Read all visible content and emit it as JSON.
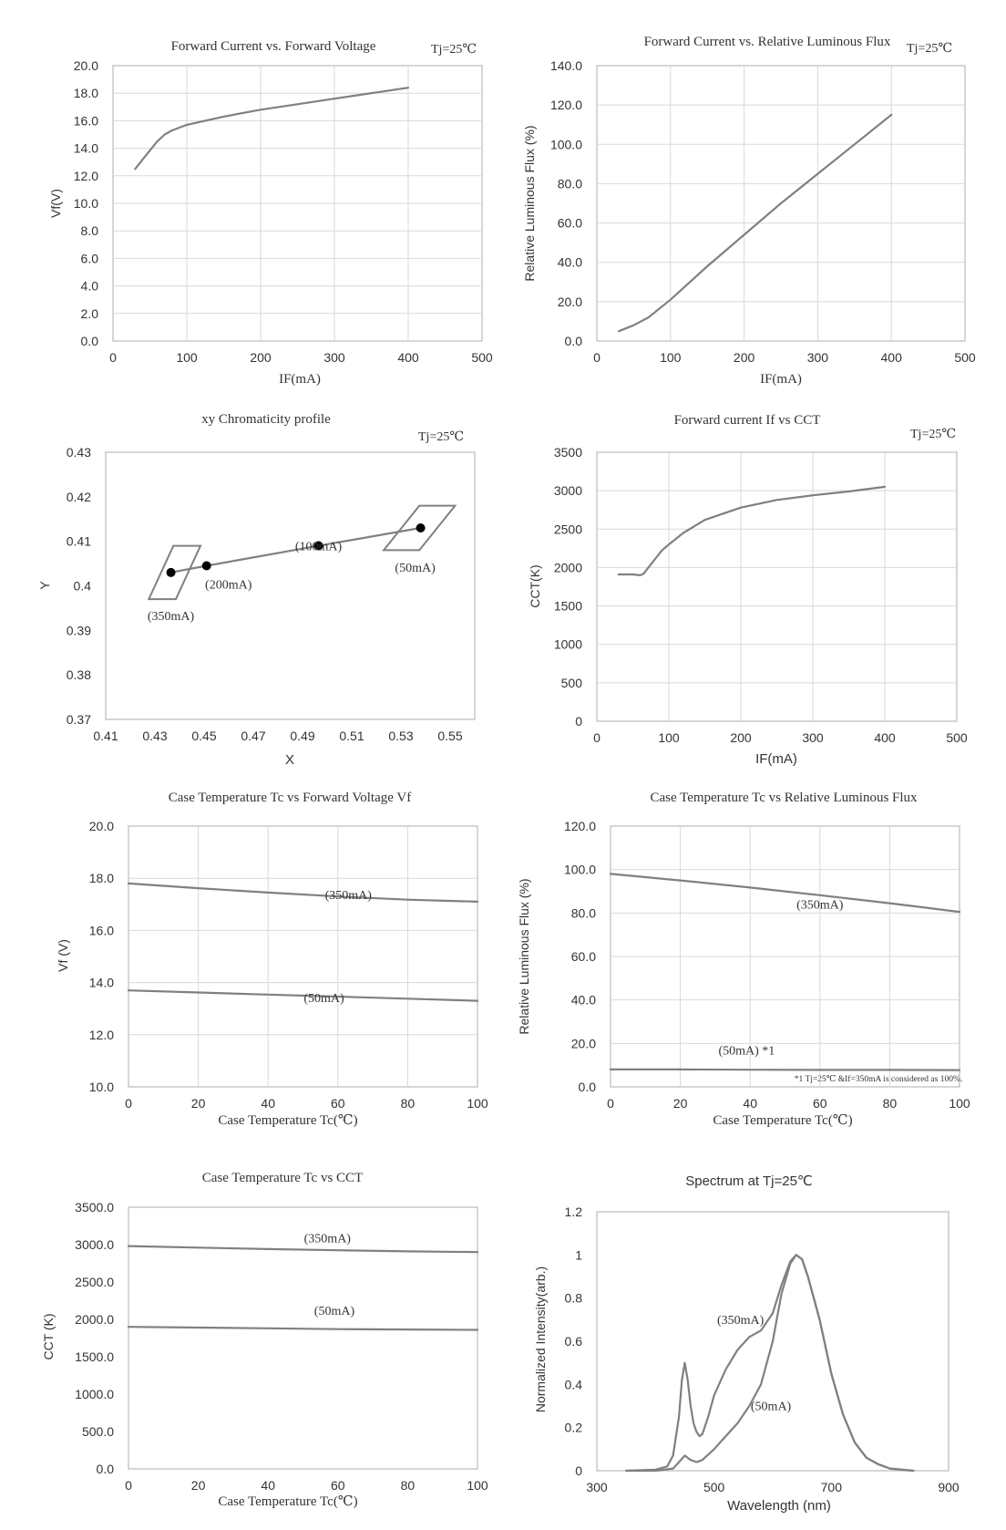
{
  "colors": {
    "line": "#808080",
    "grid": "#d9d9d9",
    "axis": "#bfbfbf",
    "text": "#333333",
    "marker": "#000000"
  },
  "chart_data": [
    {
      "type": "line",
      "title": "Forward Current vs. Forward Voltage",
      "annotation": "Tj=25℃",
      "xlabel": "IF(mA)",
      "ylabel": "Vf(V)",
      "xlim": [
        0,
        500
      ],
      "ylim": [
        0,
        20
      ],
      "xticks": [
        "0",
        "100",
        "200",
        "300",
        "400",
        "500"
      ],
      "yticks": [
        "0.0",
        "2.0",
        "4.0",
        "6.0",
        "8.0",
        "10.0",
        "12.0",
        "14.0",
        "16.0",
        "18.0",
        "20.0"
      ],
      "grid": true,
      "series": [
        {
          "x": [
            30,
            45,
            60,
            70,
            80,
            100,
            150,
            200,
            250,
            300,
            350,
            400
          ],
          "y": [
            12.5,
            13.5,
            14.5,
            15.0,
            15.3,
            15.7,
            16.3,
            16.8,
            17.2,
            17.6,
            18.0,
            18.4
          ]
        }
      ]
    },
    {
      "type": "line",
      "title": "Forward Current vs. Relative Luminous Flux",
      "annotation": "Tj=25℃",
      "xlabel": "IF(mA)",
      "ylabel": "Relative Luminous Flux (%)",
      "xlim": [
        0,
        500
      ],
      "ylim": [
        0,
        140
      ],
      "xticks": [
        "0",
        "100",
        "200",
        "300",
        "400",
        "500"
      ],
      "yticks": [
        "0.0",
        "20.0",
        "40.0",
        "60.0",
        "80.0",
        "100.0",
        "120.0",
        "140.0"
      ],
      "grid": true,
      "series": [
        {
          "x": [
            30,
            50,
            70,
            90,
            100,
            150,
            200,
            250,
            300,
            350,
            400
          ],
          "y": [
            5,
            8,
            12,
            18,
            21,
            38,
            54,
            70,
            85,
            100,
            115
          ]
        }
      ]
    },
    {
      "type": "scatter",
      "title": "xy Chromaticity profile",
      "annotation": "Tj=25℃",
      "xlabel": "X",
      "ylabel": "Y",
      "xlim": [
        0.41,
        0.56
      ],
      "ylim": [
        0.37,
        0.43
      ],
      "xticks": [
        "0.41",
        "0.43",
        "0.45",
        "0.47",
        "0.49",
        "0.51",
        "0.53",
        "0.55"
      ],
      "yticks": [
        "0.37",
        "0.38",
        "0.39",
        "0.4",
        "0.41",
        "0.42",
        "0.43"
      ],
      "grid": false,
      "points": [
        {
          "label": "(350mA)",
          "x": 0.4365,
          "y": 0.403
        },
        {
          "label": "(200mA)",
          "x": 0.451,
          "y": 0.4045
        },
        {
          "label": "(100mA)",
          "x": 0.4965,
          "y": 0.409
        },
        {
          "label": "(50mA)",
          "x": 0.538,
          "y": 0.413
        }
      ],
      "boxes": [
        [
          [
            0.4275,
            0.397
          ],
          [
            0.4385,
            0.397
          ],
          [
            0.4485,
            0.409
          ],
          [
            0.4375,
            0.409
          ]
        ],
        [
          [
            0.523,
            0.408
          ],
          [
            0.5375,
            0.408
          ],
          [
            0.552,
            0.418
          ],
          [
            0.5375,
            0.418
          ]
        ]
      ]
    },
    {
      "type": "line",
      "title": "Forward current If vs CCT",
      "annotation": "Tj=25℃",
      "xlabel": "IF(mA)",
      "ylabel": "CCT(K)",
      "xlim": [
        0,
        500
      ],
      "ylim": [
        0,
        3500
      ],
      "xticks": [
        "0",
        "100",
        "200",
        "300",
        "400",
        "500"
      ],
      "yticks": [
        "0",
        "500",
        "1000",
        "1500",
        "2000",
        "2500",
        "3000",
        "3500"
      ],
      "grid": true,
      "series": [
        {
          "x": [
            30,
            40,
            50,
            60,
            65,
            70,
            80,
            90,
            100,
            120,
            150,
            200,
            250,
            300,
            350,
            400
          ],
          "y": [
            1910,
            1910,
            1910,
            1900,
            1920,
            1980,
            2100,
            2220,
            2300,
            2450,
            2620,
            2780,
            2880,
            2940,
            2990,
            3050
          ]
        }
      ]
    },
    {
      "type": "line",
      "title": "Case Temperature Tc vs Forward Voltage Vf",
      "xlabel": "Case Temperature Tc(℃)",
      "ylabel": "Vf (V)",
      "xlim": [
        0,
        100
      ],
      "ylim": [
        10,
        20
      ],
      "xticks": [
        "0",
        "20",
        "40",
        "60",
        "80",
        "100"
      ],
      "yticks": [
        "10.0",
        "12.0",
        "14.0",
        "16.0",
        "18.0",
        "20.0"
      ],
      "grid": true,
      "series": [
        {
          "name": "(350mA)",
          "x": [
            0,
            20,
            40,
            60,
            80,
            100
          ],
          "y": [
            17.8,
            17.62,
            17.45,
            17.3,
            17.18,
            17.1
          ]
        },
        {
          "name": "(50mA)",
          "x": [
            0,
            20,
            40,
            60,
            80,
            100
          ],
          "y": [
            13.7,
            13.62,
            13.54,
            13.46,
            13.38,
            13.3
          ]
        }
      ],
      "labels": [
        {
          "text": "(350mA)",
          "x": 63,
          "y": 17.2
        },
        {
          "text": "(50mA)",
          "x": 56,
          "y": 13.25
        }
      ]
    },
    {
      "type": "line",
      "title": "Case Temperature Tc vs Relative Luminous Flux",
      "xlabel": "Case Temperature Tc(℃)",
      "ylabel": "Relative Luminous Flux (%)",
      "xlim": [
        0,
        100
      ],
      "ylim": [
        0,
        120
      ],
      "xticks": [
        "0",
        "20",
        "40",
        "60",
        "80",
        "100"
      ],
      "yticks": [
        "0.0",
        "20.0",
        "40.0",
        "60.0",
        "80.0",
        "100.0",
        "120.0"
      ],
      "grid": true,
      "series": [
        {
          "name": "(350mA)",
          "x": [
            0,
            20,
            40,
            60,
            80,
            100
          ],
          "y": [
            98,
            95,
            91.7,
            88.2,
            84.5,
            80.5
          ]
        },
        {
          "name": "(50mA) *1",
          "x": [
            0,
            20,
            40,
            60,
            80,
            100
          ],
          "y": [
            8,
            8,
            7.9,
            7.8,
            7.8,
            7.7
          ]
        }
      ],
      "labels": [
        {
          "text": "(350mA)",
          "x": 60,
          "y": 82
        },
        {
          "text": "(50mA) *1",
          "x": 39,
          "y": 15
        }
      ],
      "footnote": "*1 Tj=25℃ &If=350mA is considered as 100%."
    },
    {
      "type": "line",
      "title": "Case Temperature Tc vs CCT",
      "xlabel": "Case Temperature Tc(℃)",
      "ylabel": "CCT (K)",
      "xlim": [
        0,
        100
      ],
      "ylim": [
        0,
        3500
      ],
      "xticks": [
        "0",
        "20",
        "40",
        "60",
        "80",
        "100"
      ],
      "yticks": [
        "0.0",
        "500.0",
        "1000.0",
        "1500.0",
        "2000.0",
        "2500.0",
        "3000.0",
        "3500.0"
      ],
      "grid": false,
      "series": [
        {
          "name": "(350mA)",
          "x": [
            0,
            20,
            40,
            60,
            80,
            100
          ],
          "y": [
            2980,
            2960,
            2940,
            2925,
            2910,
            2900
          ]
        },
        {
          "name": "(50mA)",
          "x": [
            0,
            20,
            40,
            60,
            80,
            100
          ],
          "y": [
            1900,
            1890,
            1880,
            1870,
            1865,
            1860
          ]
        }
      ],
      "labels": [
        {
          "text": "(350mA)",
          "x": 57,
          "y": 3030
        },
        {
          "text": "(50mA)",
          "x": 59,
          "y": 2060
        }
      ]
    },
    {
      "type": "line",
      "title": "Spectrum at Tj=25℃",
      "xlabel": "Wavelength (nm)",
      "ylabel": "Normalized Intensity(arb.)",
      "xlim": [
        300,
        900
      ],
      "ylim": [
        0,
        1.2
      ],
      "xticks": [
        "300",
        "500",
        "700",
        "900"
      ],
      "yticks": [
        "0",
        "0.2",
        "0.4",
        "0.6",
        "0.8",
        "1",
        "1.2"
      ],
      "grid": false,
      "series": [
        {
          "name": "(350mA)",
          "x": [
            350,
            400,
            420,
            430,
            440,
            445,
            450,
            455,
            460,
            465,
            470,
            475,
            480,
            490,
            500,
            520,
            540,
            560,
            580,
            600,
            615,
            630,
            640,
            650,
            660,
            680,
            700,
            720,
            740,
            760,
            780,
            800,
            840
          ],
          "y": [
            0,
            0.005,
            0.02,
            0.07,
            0.25,
            0.42,
            0.5,
            0.42,
            0.3,
            0.22,
            0.18,
            0.16,
            0.17,
            0.25,
            0.35,
            0.47,
            0.56,
            0.62,
            0.65,
            0.73,
            0.86,
            0.97,
            1.0,
            0.98,
            0.9,
            0.7,
            0.45,
            0.26,
            0.13,
            0.06,
            0.03,
            0.01,
            0
          ]
        },
        {
          "name": "(50mA)",
          "x": [
            350,
            400,
            430,
            440,
            450,
            460,
            470,
            480,
            500,
            520,
            540,
            560,
            580,
            600,
            615,
            630,
            640,
            650,
            660,
            680,
            700,
            720,
            740,
            760,
            780,
            800,
            840
          ],
          "y": [
            0,
            0,
            0.01,
            0.04,
            0.07,
            0.05,
            0.04,
            0.05,
            0.1,
            0.16,
            0.22,
            0.3,
            0.4,
            0.6,
            0.82,
            0.96,
            1.0,
            0.98,
            0.9,
            0.7,
            0.45,
            0.26,
            0.13,
            0.06,
            0.03,
            0.01,
            0
          ]
        }
      ],
      "labels": [
        {
          "text": "(350mA)",
          "x": 545,
          "y": 0.68
        },
        {
          "text": "(50mA)",
          "x": 597,
          "y": 0.28
        }
      ]
    }
  ]
}
